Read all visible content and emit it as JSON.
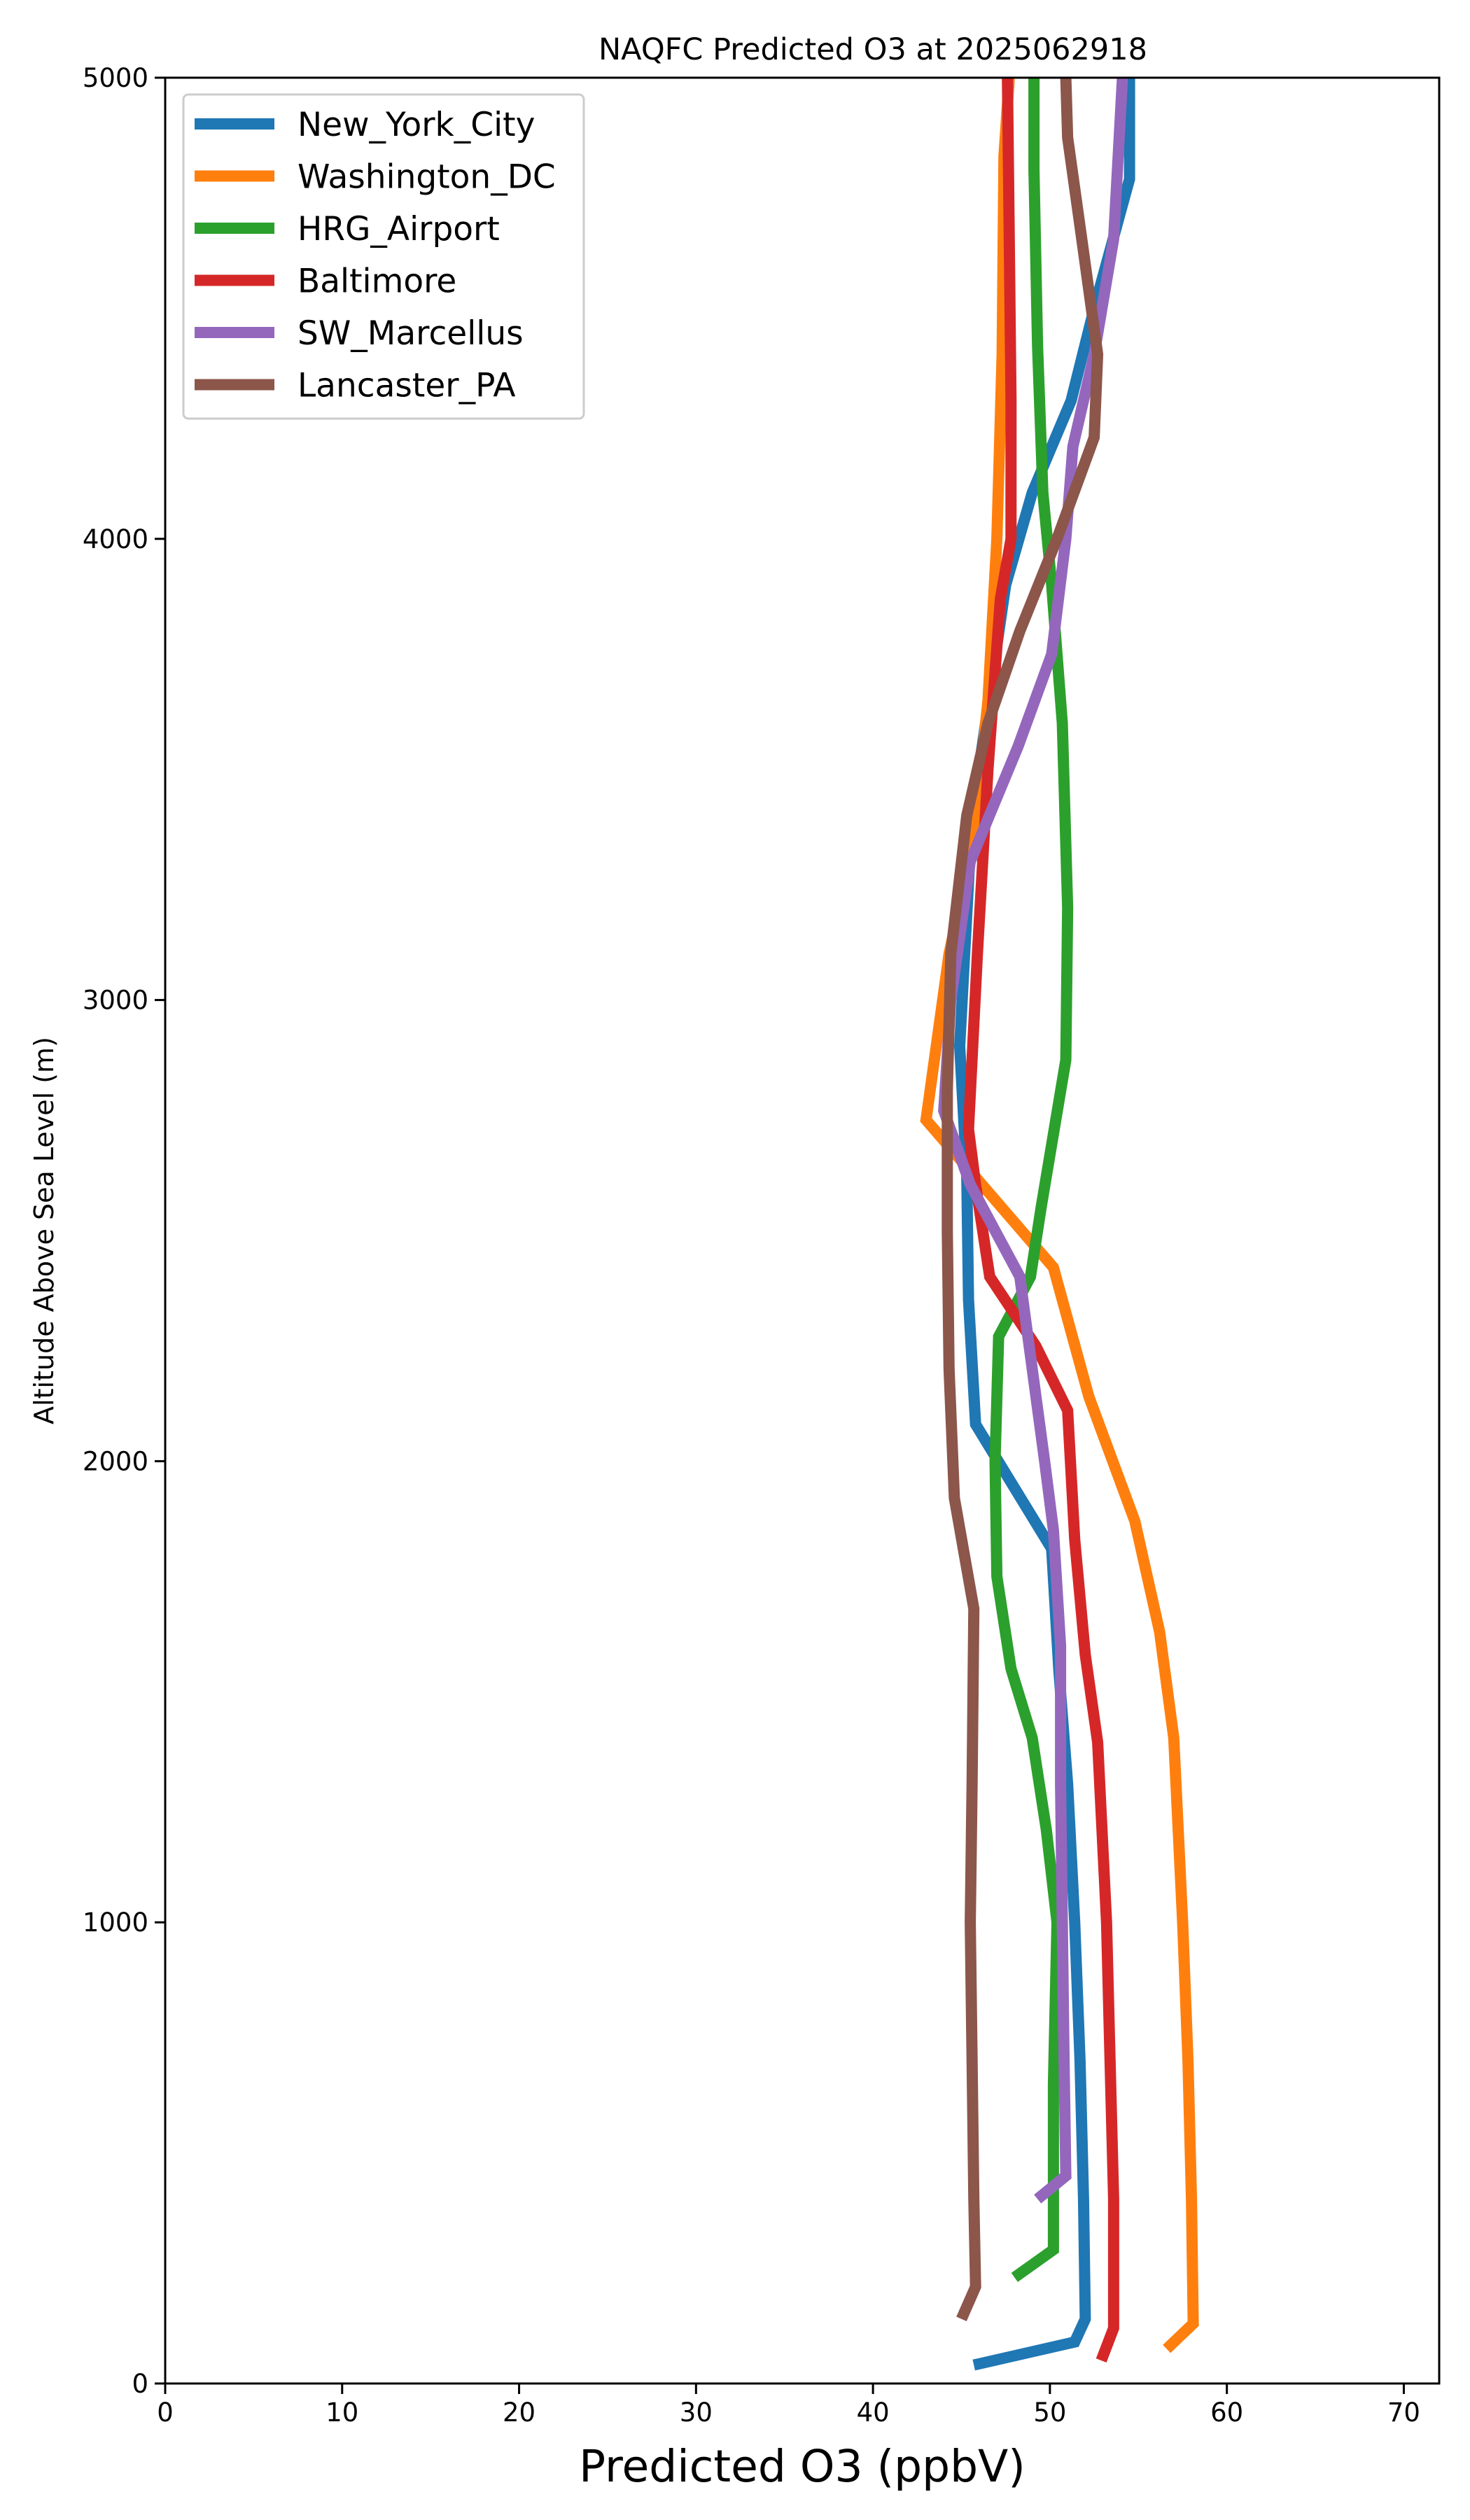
{
  "chart_data": {
    "type": "line",
    "title": "NAQFC Predicted O3 at 2025062918",
    "xlabel": "Predicted O3 (ppbV)",
    "ylabel": "Altitude Above Sea Level (m)",
    "xlim": [
      0,
      72
    ],
    "ylim": [
      0,
      5000
    ],
    "xticks": [
      0,
      10,
      20,
      30,
      40,
      50,
      60,
      70
    ],
    "yticks": [
      0,
      1000,
      2000,
      3000,
      4000,
      5000
    ],
    "grid": false,
    "legend_position": "top-left",
    "series": [
      {
        "name": "New_York_City",
        "color": "#1f77b4",
        "points": [
          [
            45.7,
            40
          ],
          [
            51.4,
            90
          ],
          [
            52.0,
            140
          ],
          [
            51.9,
            400
          ],
          [
            51.7,
            700
          ],
          [
            51.4,
            1000
          ],
          [
            51.0,
            1300
          ],
          [
            50.5,
            1550
          ],
          [
            50.1,
            1810
          ],
          [
            45.8,
            2080
          ],
          [
            45.4,
            2350
          ],
          [
            45.3,
            2620
          ],
          [
            44.9,
            2900
          ],
          [
            45.6,
            3400
          ],
          [
            47.5,
            3900
          ],
          [
            49.0,
            4100
          ],
          [
            51.2,
            4300
          ],
          [
            52.5,
            4500
          ],
          [
            54.5,
            4780
          ],
          [
            54.5,
            5000
          ]
        ]
      },
      {
        "name": "Washington_DC",
        "color": "#ff7f0e",
        "points": [
          [
            56.6,
            75
          ],
          [
            58.1,
            130
          ],
          [
            58.0,
            400
          ],
          [
            57.8,
            700
          ],
          [
            57.5,
            1000
          ],
          [
            57.0,
            1400
          ],
          [
            56.2,
            1630
          ],
          [
            54.8,
            1870
          ],
          [
            52.2,
            2140
          ],
          [
            50.2,
            2420
          ],
          [
            45.7,
            2620
          ],
          [
            43.0,
            2740
          ],
          [
            44.3,
            3100
          ],
          [
            45.7,
            3350
          ],
          [
            46.5,
            3650
          ],
          [
            47.0,
            4000
          ],
          [
            47.3,
            4400
          ],
          [
            47.4,
            4830
          ],
          [
            47.7,
            5000
          ]
        ]
      },
      {
        "name": "HRG_Airport",
        "color": "#2ca02c",
        "points": [
          [
            48.0,
            230
          ],
          [
            50.2,
            290
          ],
          [
            50.2,
            400
          ],
          [
            50.2,
            650
          ],
          [
            50.4,
            1000
          ],
          [
            49.8,
            1200
          ],
          [
            49.0,
            1400
          ],
          [
            47.8,
            1550
          ],
          [
            47.0,
            1750
          ],
          [
            46.9,
            2000
          ],
          [
            47.1,
            2270
          ],
          [
            48.9,
            2400
          ],
          [
            49.5,
            2550
          ],
          [
            50.9,
            2870
          ],
          [
            51.0,
            3200
          ],
          [
            50.7,
            3600
          ],
          [
            50.1,
            3900
          ],
          [
            49.6,
            4100
          ],
          [
            49.3,
            4420
          ],
          [
            49.1,
            4800
          ],
          [
            49.1,
            5000
          ]
        ]
      },
      {
        "name": "Baltimore",
        "color": "#d62728",
        "points": [
          [
            52.9,
            50
          ],
          [
            53.6,
            120
          ],
          [
            53.6,
            400
          ],
          [
            53.4,
            700
          ],
          [
            53.2,
            1000
          ],
          [
            52.7,
            1390
          ],
          [
            52.0,
            1580
          ],
          [
            51.4,
            1830
          ],
          [
            51.0,
            2110
          ],
          [
            49.2,
            2250
          ],
          [
            46.6,
            2400
          ],
          [
            45.8,
            2600
          ],
          [
            45.4,
            2720
          ],
          [
            45.9,
            3100
          ],
          [
            46.5,
            3500
          ],
          [
            47.2,
            3870
          ],
          [
            47.8,
            4000
          ],
          [
            47.8,
            4300
          ],
          [
            47.7,
            4650
          ],
          [
            47.6,
            5000
          ]
        ]
      },
      {
        "name": "SW_Marcellus",
        "color": "#9467bd",
        "points": [
          [
            49.3,
            400
          ],
          [
            50.9,
            450
          ],
          [
            50.8,
            700
          ],
          [
            50.7,
            1000
          ],
          [
            50.6,
            1300
          ],
          [
            50.6,
            1600
          ],
          [
            50.2,
            1850
          ],
          [
            49.7,
            2000
          ],
          [
            49.0,
            2200
          ],
          [
            48.3,
            2400
          ],
          [
            45.5,
            2600
          ],
          [
            44.0,
            2760
          ],
          [
            44.4,
            3000
          ],
          [
            45.5,
            3300
          ],
          [
            48.2,
            3550
          ],
          [
            50.1,
            3750
          ],
          [
            50.9,
            4000
          ],
          [
            51.3,
            4200
          ],
          [
            52.5,
            4400
          ],
          [
            53.6,
            4650
          ],
          [
            54.1,
            5000
          ]
        ]
      },
      {
        "name": "Lancaster_PA",
        "color": "#8c564b",
        "points": [
          [
            45.0,
            140
          ],
          [
            45.8,
            210
          ],
          [
            45.7,
            400
          ],
          [
            45.6,
            700
          ],
          [
            45.5,
            1000
          ],
          [
            45.6,
            1300
          ],
          [
            45.7,
            1680
          ],
          [
            44.6,
            1920
          ],
          [
            44.3,
            2200
          ],
          [
            44.2,
            2500
          ],
          [
            44.2,
            2800
          ],
          [
            44.4,
            3100
          ],
          [
            45.3,
            3400
          ],
          [
            46.5,
            3600
          ],
          [
            48.3,
            3800
          ],
          [
            50.4,
            4000
          ],
          [
            52.5,
            4220
          ],
          [
            52.7,
            4400
          ],
          [
            51.8,
            4650
          ],
          [
            51.0,
            4870
          ],
          [
            50.9,
            5000
          ]
        ]
      }
    ]
  }
}
